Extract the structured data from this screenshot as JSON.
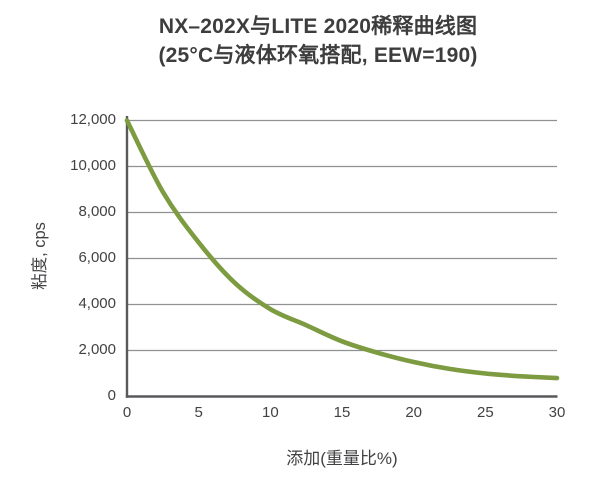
{
  "title": {
    "line1": "NX–202X与LITE 2020稀释曲线图",
    "line2": "(25°C与液体环氧搭配, EEW=190)"
  },
  "chart_data": {
    "type": "line",
    "title": "NX–202X与LITE 2020稀释曲线图 (25°C与液体环氧搭配, EEW=190)",
    "xlabel": "添加(重量比%)",
    "ylabel": "粘度, cps",
    "xlim": [
      0,
      30
    ],
    "ylim": [
      0,
      12000
    ],
    "grid": "horizontal",
    "legend": "none",
    "series": [
      {
        "x": [
          0,
          2.5,
          5,
          7.5,
          10,
          12.5,
          15,
          17.5,
          20,
          22.5,
          25,
          27.5,
          30
        ],
        "y": [
          12000,
          8900,
          6700,
          4950,
          3800,
          3100,
          2400,
          1900,
          1500,
          1200,
          1000,
          880,
          800
        ],
        "color": "#7d9b40"
      }
    ],
    "x_tick_values": [
      0,
      5,
      10,
      15,
      20,
      25,
      30
    ],
    "x_tick_labels": [
      "0",
      "5",
      "10",
      "15",
      "20",
      "25",
      "30"
    ],
    "y_tick_values": [
      0,
      2000,
      4000,
      6000,
      8000,
      10000,
      12000
    ],
    "y_tick_labels": [
      "0",
      "2,000",
      "4,000",
      "6,000",
      "8,000",
      "10,000",
      "12,000"
    ],
    "colors": {
      "line": "#7d9b40",
      "axis": "#58595b",
      "grid": "#8f9193",
      "text": "#424244",
      "background": "#ffffff"
    }
  }
}
